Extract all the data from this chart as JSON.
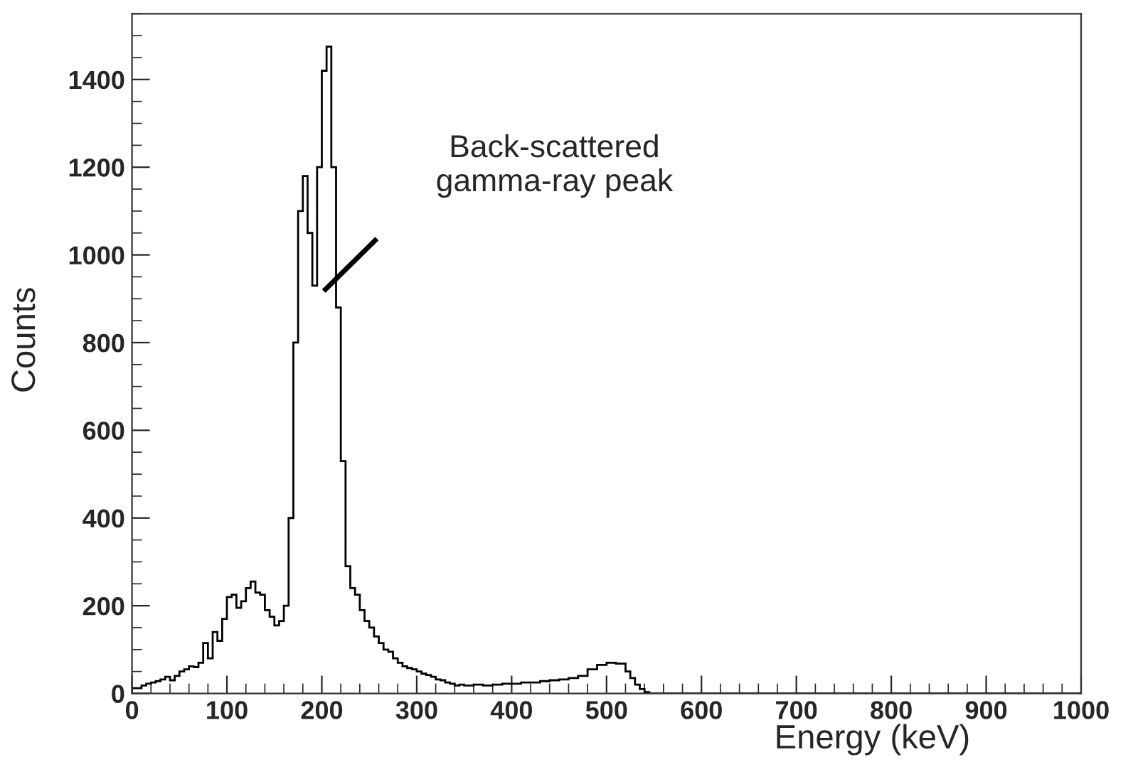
{
  "chart_data": {
    "type": "histogram",
    "xlabel": "Energy (keV)",
    "ylabel": "Counts",
    "bins": [
      0,
      5,
      10,
      15,
      20,
      25,
      30,
      35,
      40,
      45,
      50,
      55,
      60,
      65,
      70,
      75,
      80,
      85,
      90,
      95,
      100,
      105,
      110,
      115,
      120,
      125,
      130,
      135,
      140,
      145,
      150,
      155,
      160,
      165,
      170,
      175,
      180,
      185,
      190,
      195,
      200,
      205,
      210,
      215,
      220,
      225,
      230,
      235,
      240,
      245,
      250,
      255,
      260,
      265,
      270,
      275,
      280,
      285,
      290,
      295,
      300,
      305,
      310,
      315,
      320,
      325,
      330,
      335,
      340,
      345,
      350,
      360,
      370,
      380,
      390,
      400,
      410,
      420,
      430,
      440,
      450,
      460,
      470,
      480,
      490,
      500,
      510,
      520,
      525,
      530,
      535,
      540,
      545,
      1000
    ],
    "values": [
      12,
      12,
      18,
      22,
      25,
      28,
      32,
      38,
      30,
      40,
      50,
      55,
      62,
      60,
      70,
      115,
      80,
      140,
      120,
      170,
      220,
      225,
      195,
      210,
      240,
      255,
      230,
      225,
      190,
      175,
      155,
      165,
      200,
      400,
      800,
      1100,
      1180,
      1050,
      930,
      1200,
      1420,
      1475,
      1200,
      880,
      530,
      290,
      240,
      225,
      190,
      165,
      150,
      130,
      115,
      100,
      95,
      80,
      70,
      62,
      58,
      55,
      50,
      45,
      42,
      38,
      32,
      30,
      25,
      22,
      18,
      20,
      18,
      20,
      18,
      20,
      22,
      22,
      25,
      25,
      28,
      30,
      32,
      35,
      40,
      55,
      65,
      70,
      68,
      50,
      35,
      20,
      10,
      3,
      0
    ],
    "color": "#000000",
    "xlim": [
      0,
      1000
    ],
    "xticks": [
      0,
      100,
      200,
      300,
      400,
      500,
      600,
      700,
      800,
      900,
      1000
    ],
    "ylim": [
      0,
      1550
    ],
    "yticks": [
      0,
      200,
      400,
      600,
      800,
      1000,
      1200,
      1400
    ],
    "annotations": [
      "Back-scattered\ngamma-ray peak"
    ]
  }
}
